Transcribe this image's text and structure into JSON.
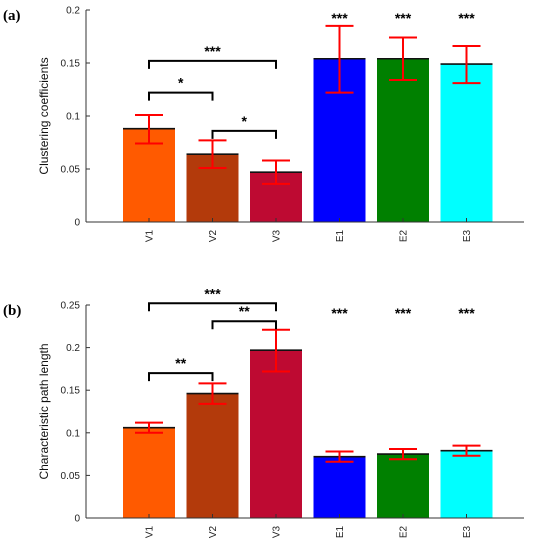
{
  "chart_data": [
    {
      "type": "bar",
      "panel_label": "(a)",
      "categories": [
        "V1",
        "V2",
        "V3",
        "E1",
        "E2",
        "E3"
      ],
      "values": [
        0.088,
        0.064,
        0.047,
        0.154,
        0.154,
        0.149
      ],
      "error_low": [
        0.074,
        0.051,
        0.036,
        0.122,
        0.134,
        0.131
      ],
      "error_high": [
        0.101,
        0.077,
        0.058,
        0.185,
        0.174,
        0.166
      ],
      "colors": [
        "#ff5a00",
        "#b33a0b",
        "#be0a32",
        "#0000ff",
        "#008000",
        "#00ffff"
      ],
      "ylabel": "Clustering coefficients",
      "xlabel": "",
      "ylim": [
        0,
        0.2
      ],
      "yticks": [
        "0",
        "0.05",
        "0.1",
        "0.15",
        "0.2"
      ],
      "bar_significance": [
        "",
        "",
        "",
        "***",
        "***",
        "***"
      ],
      "brackets": [
        {
          "from": "V1",
          "to": "V3",
          "label": "***",
          "level": 0.152
        },
        {
          "from": "V1",
          "to": "V2",
          "label": "*",
          "level": 0.122
        },
        {
          "from": "V2",
          "to": "V3",
          "label": "*",
          "level": 0.086
        }
      ],
      "grid": false
    },
    {
      "type": "bar",
      "panel_label": "(b)",
      "categories": [
        "V1",
        "V2",
        "V3",
        "E1",
        "E2",
        "E3"
      ],
      "values": [
        0.106,
        0.146,
        0.197,
        0.072,
        0.075,
        0.079
      ],
      "error_low": [
        0.1,
        0.134,
        0.172,
        0.066,
        0.069,
        0.073
      ],
      "error_high": [
        0.112,
        0.158,
        0.221,
        0.078,
        0.081,
        0.085
      ],
      "colors": [
        "#ff5a00",
        "#b33a0b",
        "#be0a32",
        "#0000ff",
        "#008000",
        "#00ffff"
      ],
      "ylabel": "Characteristic path length",
      "xlabel": "",
      "ylim": [
        0,
        0.25
      ],
      "yticks": [
        "0",
        "0.05",
        "0.1",
        "0.15",
        "0.2",
        "0.25"
      ],
      "bar_significance": [
        "",
        "",
        "",
        "***",
        "***",
        "***"
      ],
      "brackets": [
        {
          "from": "V1",
          "to": "V3",
          "label": "***",
          "level": 0.252
        },
        {
          "from": "V2",
          "to": "V3",
          "label": "**",
          "level": 0.231
        },
        {
          "from": "V1",
          "to": "V2",
          "label": "**",
          "level": 0.17
        }
      ],
      "grid": false
    }
  ]
}
